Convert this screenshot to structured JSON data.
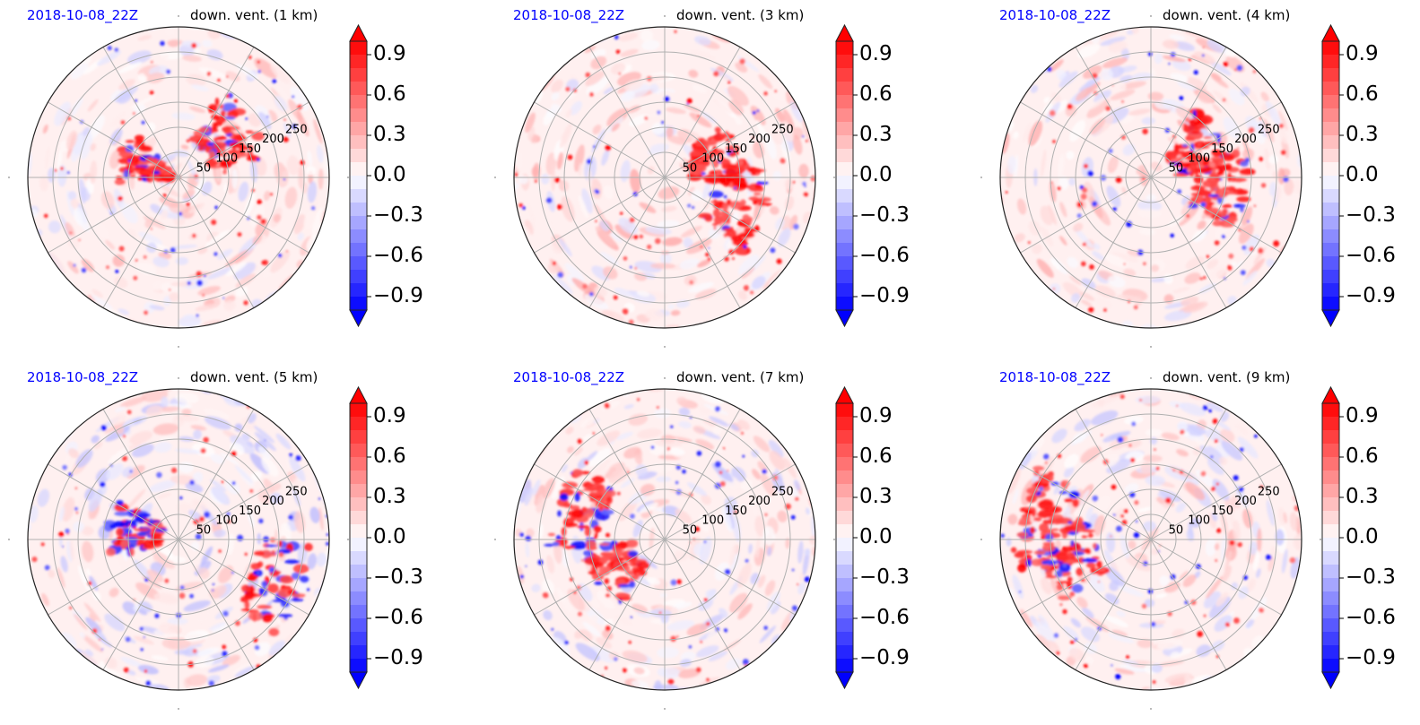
{
  "figure": {
    "panels": [
      {
        "date": "2018-10-08_22Z",
        "title": "down. vent. (1 km)"
      },
      {
        "date": "2018-10-08_22Z",
        "title": "down. vent. (3 km)"
      },
      {
        "date": "2018-10-08_22Z",
        "title": "down. vent. (4 km)"
      },
      {
        "date": "2018-10-08_22Z",
        "title": "down. vent. (5 km)"
      },
      {
        "date": "2018-10-08_22Z",
        "title": "down. vent. (7 km)"
      },
      {
        "date": "2018-10-08_22Z",
        "title": "down. vent. (9 km)"
      }
    ],
    "colorbar": {
      "tick_labels": [
        "0.9",
        "0.6",
        "0.3",
        "0.0",
        "−0.3",
        "−0.6",
        "−0.9"
      ],
      "color_low": "#0000ff",
      "color_mid": "#ffffff",
      "color_high": "#ff0000"
    }
  },
  "chart_data": [
    {
      "type": "heatmap",
      "projection": "polar",
      "panel": 1,
      "title": "down. vent. (1 km)",
      "date": "2018-10-08_22Z",
      "radial_ticks": [
        50,
        100,
        150,
        200,
        250
      ],
      "angular_gridlines_deg": [
        0,
        30,
        60,
        90,
        120,
        150,
        180,
        210,
        240,
        270,
        300,
        330
      ],
      "colormap": "bwr",
      "vmin": -1.0,
      "vmax": 1.0,
      "colorbar_ticks": [
        -0.9,
        -0.6,
        -0.3,
        0.0,
        0.3,
        0.6,
        0.9
      ],
      "extend": "both"
    },
    {
      "type": "heatmap",
      "projection": "polar",
      "panel": 2,
      "title": "down. vent. (3 km)",
      "date": "2018-10-08_22Z",
      "radial_ticks": [
        50,
        100,
        150,
        200,
        250
      ],
      "angular_gridlines_deg": [
        0,
        30,
        60,
        90,
        120,
        150,
        180,
        210,
        240,
        270,
        300,
        330
      ],
      "colormap": "bwr",
      "vmin": -1.0,
      "vmax": 1.0,
      "colorbar_ticks": [
        -0.9,
        -0.6,
        -0.3,
        0.0,
        0.3,
        0.6,
        0.9
      ],
      "extend": "both"
    },
    {
      "type": "heatmap",
      "projection": "polar",
      "panel": 3,
      "title": "down. vent. (4 km)",
      "date": "2018-10-08_22Z",
      "radial_ticks": [
        50,
        100,
        150,
        200,
        250
      ],
      "angular_gridlines_deg": [
        0,
        30,
        60,
        90,
        120,
        150,
        180,
        210,
        240,
        270,
        300,
        330
      ],
      "colormap": "bwr",
      "vmin": -1.0,
      "vmax": 1.0,
      "colorbar_ticks": [
        -0.9,
        -0.6,
        -0.3,
        0.0,
        0.3,
        0.6,
        0.9
      ],
      "extend": "both"
    },
    {
      "type": "heatmap",
      "projection": "polar",
      "panel": 4,
      "title": "down. vent. (5 km)",
      "date": "2018-10-08_22Z",
      "radial_ticks": [
        50,
        100,
        150,
        200,
        250
      ],
      "angular_gridlines_deg": [
        0,
        30,
        60,
        90,
        120,
        150,
        180,
        210,
        240,
        270,
        300,
        330
      ],
      "colormap": "bwr",
      "vmin": -1.0,
      "vmax": 1.0,
      "colorbar_ticks": [
        -0.9,
        -0.6,
        -0.3,
        0.0,
        0.3,
        0.6,
        0.9
      ],
      "extend": "both"
    },
    {
      "type": "heatmap",
      "projection": "polar",
      "panel": 5,
      "title": "down. vent. (7 km)",
      "date": "2018-10-08_22Z",
      "radial_ticks": [
        50,
        100,
        150,
        200,
        250
      ],
      "angular_gridlines_deg": [
        0,
        30,
        60,
        90,
        120,
        150,
        180,
        210,
        240,
        270,
        300,
        330
      ],
      "colormap": "bwr",
      "vmin": -1.0,
      "vmax": 1.0,
      "colorbar_ticks": [
        -0.9,
        -0.6,
        -0.3,
        0.0,
        0.3,
        0.6,
        0.9
      ],
      "extend": "both"
    },
    {
      "type": "heatmap",
      "projection": "polar",
      "panel": 6,
      "title": "down. vent. (9 km)",
      "date": "2018-10-08_22Z",
      "radial_ticks": [
        50,
        100,
        150,
        200,
        250
      ],
      "angular_gridlines_deg": [
        0,
        30,
        60,
        90,
        120,
        150,
        180,
        210,
        240,
        270,
        300,
        330
      ],
      "colormap": "bwr",
      "vmin": -1.0,
      "vmax": 1.0,
      "colorbar_ticks": [
        -0.9,
        -0.6,
        -0.3,
        0.0,
        0.3,
        0.6,
        0.9
      ],
      "extend": "both"
    }
  ]
}
